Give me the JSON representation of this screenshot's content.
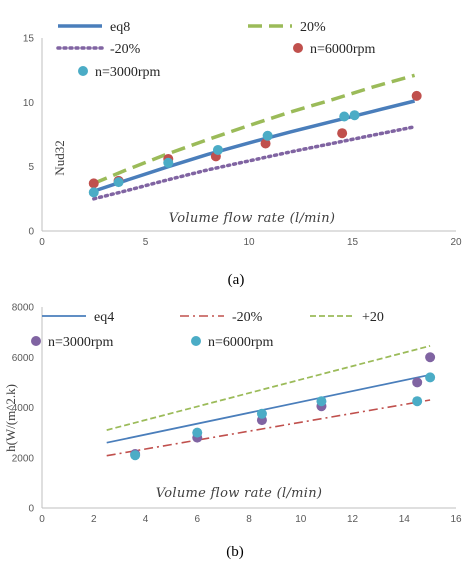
{
  "chart_data": [
    {
      "type": "scatter",
      "title": "",
      "xlabel": "Volume flow rate (l/min)",
      "ylabel": "Nud32",
      "caption": "(a)",
      "xlim": [
        0,
        20
      ],
      "ylim": [
        0,
        15
      ],
      "xticks": [
        "0",
        "5",
        "10",
        "15",
        "20"
      ],
      "yticks": [
        "0",
        "5",
        "10",
        "15"
      ],
      "grid": false,
      "legend_position": "top",
      "lines": [
        {
          "name": "eq8",
          "style": "solid",
          "color": "#4a7ebb",
          "x": [
            2.5,
            4,
            6,
            8,
            10,
            12,
            14,
            16,
            18
          ],
          "y": [
            3.1,
            3.9,
            4.95,
            5.95,
            6.85,
            7.7,
            8.5,
            9.3,
            10.1
          ]
        },
        {
          "name": "20%",
          "style": "dashed",
          "color": "#9bbb59",
          "x": [
            2.5,
            4,
            6,
            8,
            10,
            12,
            14,
            16,
            18
          ],
          "y": [
            3.7,
            4.7,
            5.95,
            7.1,
            8.2,
            9.25,
            10.2,
            11.2,
            12.1
          ]
        },
        {
          "name": "-20%",
          "style": "dotted",
          "color": "#8064a2",
          "x": [
            2.5,
            4,
            6,
            8,
            10,
            12,
            14,
            16,
            18
          ],
          "y": [
            2.5,
            3.1,
            3.95,
            4.75,
            5.45,
            6.15,
            6.8,
            7.45,
            8.1
          ]
        }
      ],
      "points": [
        {
          "name": "n=6000rpm",
          "color": "#c0504d",
          "x": [
            2.5,
            3.7,
            6.1,
            8.4,
            10.8,
            14.5,
            18.1
          ],
          "y": [
            3.7,
            3.9,
            5.6,
            5.8,
            6.8,
            7.6,
            10.5
          ]
        },
        {
          "name": "n=3000rpm",
          "color": "#4bacc6",
          "x": [
            2.5,
            3.7,
            6.1,
            8.5,
            10.9,
            14.6,
            15.1
          ],
          "y": [
            3.0,
            3.8,
            5.3,
            6.3,
            7.4,
            8.9,
            9.0
          ]
        }
      ],
      "legend_order": [
        "eq8",
        "20%",
        "-20%",
        "n=6000rpm",
        "n=3000rpm"
      ]
    },
    {
      "type": "scatter",
      "title": "",
      "xlabel": "Volume flow rate (l/min)",
      "ylabel": "h(W/(m^2.k)",
      "caption": "(b)",
      "xlim": [
        0,
        16
      ],
      "ylim": [
        0,
        8000
      ],
      "xticks": [
        "0",
        "2",
        "4",
        "6",
        "8",
        "10",
        "12",
        "14",
        "16"
      ],
      "yticks": [
        "0",
        "2000",
        "4000",
        "6000",
        "8000"
      ],
      "grid": false,
      "legend_position": "top",
      "lines": [
        {
          "name": "eq4",
          "style": "solid",
          "color": "#4a7ebb",
          "x": [
            2.5,
            15
          ],
          "y": [
            2600,
            5300
          ]
        },
        {
          "name": "-20%",
          "style": "dashdot",
          "color": "#c0504d",
          "x": [
            2.5,
            15
          ],
          "y": [
            2080,
            4300
          ]
        },
        {
          "name": "+20",
          "style": "dashed",
          "color": "#9bbb59",
          "x": [
            2.5,
            15
          ],
          "y": [
            3100,
            6450
          ]
        }
      ],
      "points": [
        {
          "name": "n=3000rpm",
          "color": "#8064a2",
          "x": [
            3.6,
            6.0,
            8.5,
            10.8,
            14.5,
            15.0
          ],
          "y": [
            2150,
            2800,
            3500,
            4050,
            5000,
            6000
          ]
        },
        {
          "name": "n=6000rpm",
          "color": "#4bacc6",
          "x": [
            3.6,
            6.0,
            8.5,
            10.8,
            14.5,
            15.0
          ],
          "y": [
            2100,
            3000,
            3750,
            4250,
            4250,
            5200
          ]
        }
      ],
      "legend_order": [
        "eq4",
        "-20%",
        "+20",
        "n=3000rpm",
        "n=6000rpm"
      ]
    }
  ]
}
